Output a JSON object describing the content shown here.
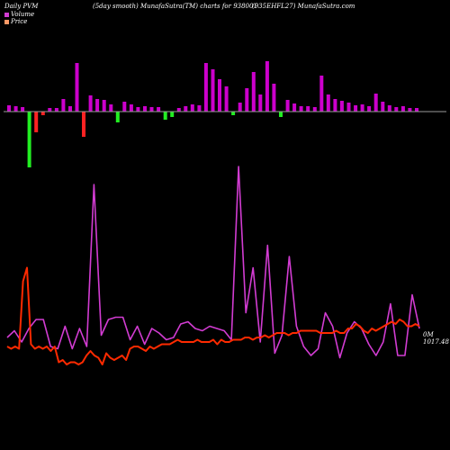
{
  "header": {
    "left": "Daily PVM",
    "middle": "(5day smooth) MunafaSutra(TM) charts for 938001",
    "right": "(935EHFL27) MunafaSutra.com"
  },
  "legend": {
    "volume_label": "Volume",
    "price_label": "Price",
    "volume_color": "#d23cd2",
    "price_color": "#ff9966"
  },
  "chart_data": {
    "type": "line",
    "title": "",
    "grid": false,
    "colors": {
      "volume_up": "#cc00cc",
      "volume_down_red": "#ff2222",
      "volume_down_green": "#22ee22",
      "volume_line": "#d23cd2",
      "price_line": "#ff2a00",
      "baseline": "#9a9a9a"
    },
    "volume_bars": [
      {
        "v": 7,
        "c": "up"
      },
      {
        "v": 6,
        "c": "up"
      },
      {
        "v": 5,
        "c": "up"
      },
      {
        "v": -62,
        "c": "green"
      },
      {
        "v": -23,
        "c": "red"
      },
      {
        "v": -4,
        "c": "red"
      },
      {
        "v": 4,
        "c": "up"
      },
      {
        "v": 4,
        "c": "up"
      },
      {
        "v": 14,
        "c": "up"
      },
      {
        "v": 6,
        "c": "up"
      },
      {
        "v": 54,
        "c": "up"
      },
      {
        "v": -28,
        "c": "red"
      },
      {
        "v": 18,
        "c": "up"
      },
      {
        "v": 14,
        "c": "up"
      },
      {
        "v": 13,
        "c": "up"
      },
      {
        "v": 8,
        "c": "up"
      },
      {
        "v": -12,
        "c": "green"
      },
      {
        "v": 11,
        "c": "up"
      },
      {
        "v": 8,
        "c": "up"
      },
      {
        "v": 5,
        "c": "up"
      },
      {
        "v": 6,
        "c": "up"
      },
      {
        "v": 5,
        "c": "up"
      },
      {
        "v": 5,
        "c": "up"
      },
      {
        "v": -9,
        "c": "green"
      },
      {
        "v": -6,
        "c": "green"
      },
      {
        "v": 4,
        "c": "up"
      },
      {
        "v": 6,
        "c": "up"
      },
      {
        "v": 8,
        "c": "up"
      },
      {
        "v": 7,
        "c": "up"
      },
      {
        "v": 54,
        "c": "up"
      },
      {
        "v": 47,
        "c": "up"
      },
      {
        "v": 36,
        "c": "up"
      },
      {
        "v": 28,
        "c": "up"
      },
      {
        "v": -4,
        "c": "green"
      },
      {
        "v": 10,
        "c": "up"
      },
      {
        "v": 26,
        "c": "up"
      },
      {
        "v": 44,
        "c": "up"
      },
      {
        "v": 19,
        "c": "up"
      },
      {
        "v": 56,
        "c": "up"
      },
      {
        "v": 31,
        "c": "up"
      },
      {
        "v": -6,
        "c": "green"
      },
      {
        "v": 13,
        "c": "up"
      },
      {
        "v": 9,
        "c": "up"
      },
      {
        "v": 6,
        "c": "up"
      },
      {
        "v": 6,
        "c": "up"
      },
      {
        "v": 5,
        "c": "up"
      },
      {
        "v": 40,
        "c": "up"
      },
      {
        "v": 19,
        "c": "up"
      },
      {
        "v": 14,
        "c": "up"
      },
      {
        "v": 12,
        "c": "up"
      },
      {
        "v": 10,
        "c": "up"
      },
      {
        "v": 7,
        "c": "up"
      },
      {
        "v": 8,
        "c": "up"
      },
      {
        "v": 6,
        "c": "up"
      },
      {
        "v": 20,
        "c": "up"
      },
      {
        "v": 11,
        "c": "up"
      },
      {
        "v": 7,
        "c": "up"
      },
      {
        "v": 5,
        "c": "up"
      },
      {
        "v": 6,
        "c": "up"
      },
      {
        "v": 4,
        "c": "up"
      },
      {
        "v": 4,
        "c": "up"
      }
    ],
    "volume_line": [
      52,
      55,
      53,
      52,
      50,
      48,
      52,
      55,
      45,
      37,
      32,
      16,
      50,
      44,
      42,
      41,
      35,
      33,
      35,
      34,
      34,
      32,
      31,
      35,
      38,
      27,
      33,
      33,
      21,
      11,
      55,
      45,
      40,
      31,
      45,
      37,
      27,
      62,
      53,
      37,
      36,
      37,
      20,
      40,
      43,
      40,
      40,
      40,
      33,
      35,
      39,
      38,
      30,
      39,
      48,
      46,
      40
    ],
    "price_line": [
      50,
      48,
      51,
      47,
      30,
      65,
      51,
      48,
      52,
      54,
      55,
      51,
      54,
      61,
      45,
      55,
      48,
      52,
      48,
      53,
      58,
      61,
      65,
      63,
      50,
      40,
      53,
      54,
      57,
      54,
      59,
      63,
      61,
      48,
      55,
      49,
      64,
      60,
      57,
      57,
      55,
      59,
      58,
      58,
      55,
      57,
      60,
      56,
      58,
      52,
      57,
      60,
      61,
      62,
      57,
      60,
      59,
      63,
      58,
      56,
      52,
      59,
      61,
      49,
      68,
      61,
      55,
      51,
      48,
      53,
      64,
      60,
      53,
      52,
      52,
      59,
      64,
      55,
      50,
      47,
      52,
      51,
      49,
      46,
      52,
      49,
      43
    ],
    "last_label": "0M 1017.48"
  }
}
